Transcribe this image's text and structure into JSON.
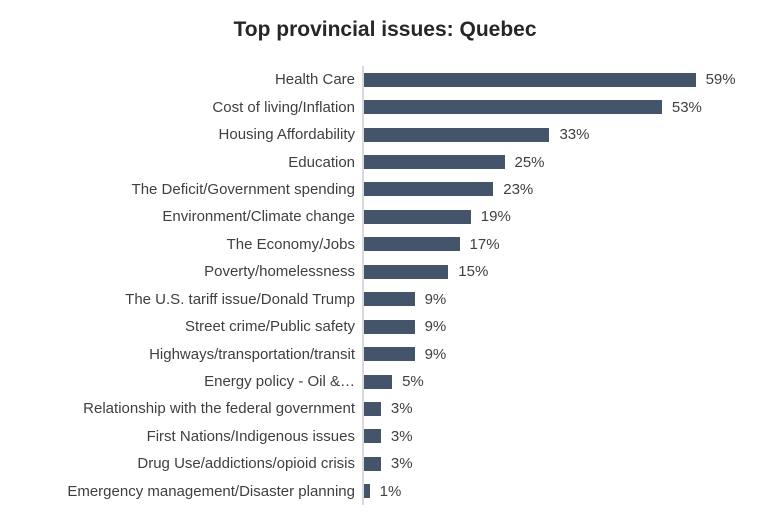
{
  "chart_data": {
    "type": "bar",
    "orientation": "horizontal",
    "title": "Top provincial issues: Quebec",
    "categories": [
      "Health Care",
      "Cost of living/Inflation",
      "Housing Affordability",
      "Education",
      "The Deficit/Government spending",
      "Environment/Climate change",
      "The Economy/Jobs",
      "Poverty/homelessness",
      "The U.S. tariff issue/Donald Trump",
      "Street crime/Public safety",
      "Highways/transportation/transit",
      "Energy policy - Oil &…",
      "Relationship with the federal government",
      "First Nations/Indigenous issues",
      "Drug Use/addictions/opioid crisis",
      "Emergency management/Disaster planning"
    ],
    "values": [
      59,
      53,
      33,
      25,
      23,
      19,
      17,
      15,
      9,
      9,
      9,
      5,
      3,
      3,
      3,
      1
    ],
    "value_suffix": "%",
    "xlim": [
      0,
      70
    ],
    "grid": false,
    "legend": false,
    "data_labels": "outside-end",
    "colors": {
      "bar": "#44546A",
      "axis_line": "#D9D9D9",
      "label_text": "#3F3F3F",
      "title_text": "#262626"
    }
  }
}
